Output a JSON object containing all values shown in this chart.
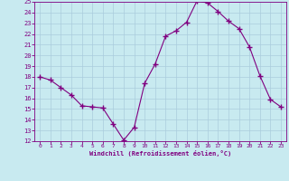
{
  "x_values": [
    0,
    1,
    2,
    3,
    4,
    5,
    6,
    7,
    8,
    9,
    10,
    11,
    12,
    13,
    14,
    15,
    16,
    17,
    18,
    19,
    20,
    21,
    22,
    23
  ],
  "y_values": [
    18,
    17.7,
    17,
    16.3,
    15.3,
    15.2,
    15.1,
    13.6,
    12.1,
    13.3,
    17.4,
    19.2,
    21.8,
    22.3,
    23.1,
    25.1,
    24.9,
    24.1,
    23.2,
    22.5,
    20.8,
    18.1,
    15.9,
    15.2
  ],
  "line_color": "#800080",
  "marker": "+",
  "marker_size": 4,
  "bg_color": "#c8eaf0",
  "grid_color": "#aaccdd",
  "xlabel": "Windchill (Refroidissement éolien,°C)",
  "xlabel_color": "#800080",
  "tick_color": "#800080",
  "label_color": "#800080",
  "ylim": [
    12,
    25
  ],
  "xlim": [
    -0.5,
    23.5
  ],
  "yticks": [
    12,
    13,
    14,
    15,
    16,
    17,
    18,
    19,
    20,
    21,
    22,
    23,
    24,
    25
  ],
  "xticks": [
    0,
    1,
    2,
    3,
    4,
    5,
    6,
    7,
    8,
    9,
    10,
    11,
    12,
    13,
    14,
    15,
    16,
    17,
    18,
    19,
    20,
    21,
    22,
    23
  ],
  "linewidth": 0.8,
  "spine_color": "#800080"
}
